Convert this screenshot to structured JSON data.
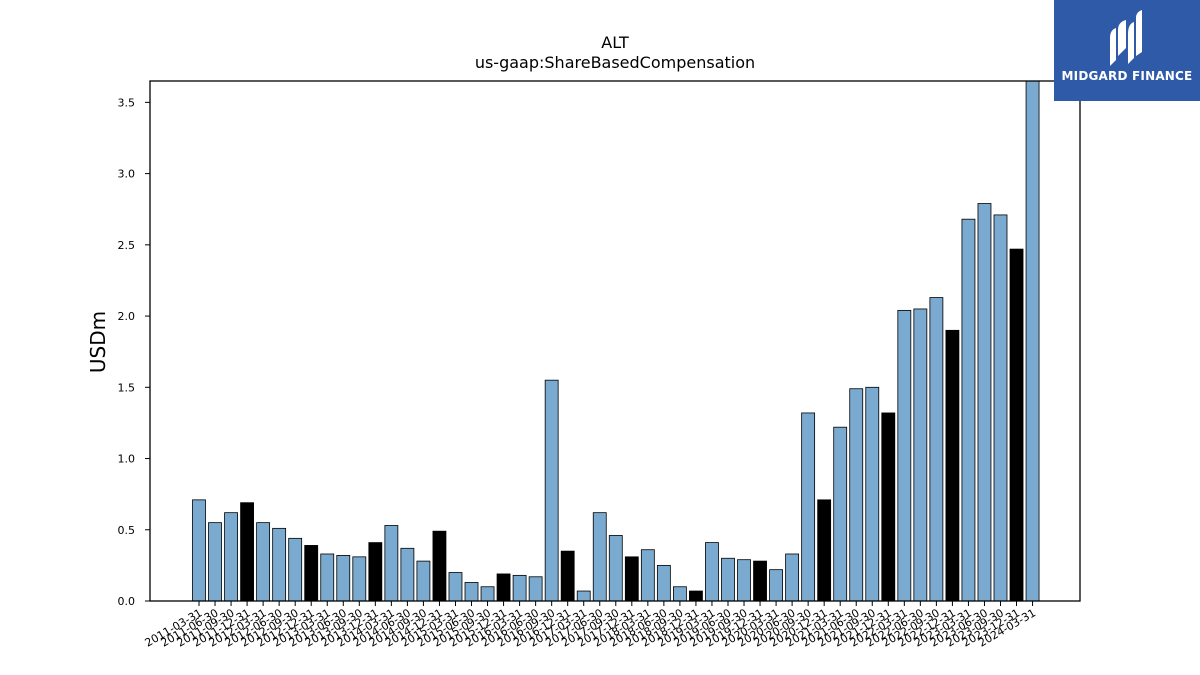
{
  "logo": {
    "text": "MIDGARD FINANCE"
  },
  "chart_data": {
    "type": "bar",
    "title": [
      "ALT",
      "us-gaap:ShareBasedCompensation"
    ],
    "xlabel": "",
    "ylabel": "USDm",
    "ylim": [
      0,
      3.65
    ],
    "yticks": [
      "0.0",
      "0.5",
      "1.0",
      "1.5",
      "2.0",
      "2.5",
      "3.0",
      "3.5"
    ],
    "colors": {
      "quarter": "#7aaad0",
      "fiscal_year_end": "#000000",
      "edge": "#000000"
    },
    "categories": [
      "2011-03-31",
      "2011-06-30",
      "2011-09-30",
      "2011-12-31",
      "2012-03-31",
      "2012-06-30",
      "2012-09-30",
      "2012-12-31",
      "2013-03-31",
      "2013-06-30",
      "2013-09-30",
      "2013-12-31",
      "2014-03-31",
      "2014-06-30",
      "2014-09-30",
      "2014-12-31",
      "2015-03-31",
      "2015-06-30",
      "2015-09-30",
      "2015-12-31",
      "2016-03-31",
      "2016-06-30",
      "2016-09-30",
      "2016-12-31",
      "2017-03-31",
      "2017-06-30",
      "2017-09-30",
      "2017-12-31",
      "2018-03-31",
      "2018-06-30",
      "2018-09-30",
      "2018-12-31",
      "2019-03-31",
      "2019-06-30",
      "2019-09-30",
      "2019-12-31",
      "2020-03-31",
      "2020-06-30",
      "2020-09-30",
      "2020-12-31",
      "2021-03-31",
      "2021-06-30",
      "2021-09-30",
      "2021-12-31",
      "2022-03-31",
      "2022-06-30",
      "2022-09-30",
      "2022-12-31",
      "2023-03-31",
      "2023-06-30",
      "2023-09-30",
      "2023-12-31",
      "2024-03-31"
    ],
    "values": [
      0.71,
      0.55,
      0.62,
      0.69,
      0.55,
      0.51,
      0.44,
      0.39,
      0.33,
      0.32,
      0.31,
      0.41,
      0.53,
      0.37,
      0.28,
      0.49,
      0.2,
      0.13,
      0.1,
      0.19,
      0.18,
      0.17,
      1.55,
      0.35,
      0.07,
      0.62,
      0.46,
      0.31,
      0.36,
      0.25,
      0.1,
      0.07,
      0.41,
      0.3,
      0.29,
      0.28,
      0.22,
      0.33,
      1.32,
      0.71,
      1.22,
      1.49,
      1.5,
      1.32,
      2.04,
      2.05,
      2.13,
      1.9,
      2.68,
      2.79,
      2.71,
      2.47,
      3.65
    ],
    "highlight": [
      false,
      false,
      false,
      true,
      false,
      false,
      false,
      true,
      false,
      false,
      false,
      true,
      false,
      false,
      false,
      true,
      false,
      false,
      false,
      true,
      false,
      false,
      false,
      true,
      false,
      false,
      false,
      true,
      false,
      false,
      false,
      true,
      false,
      false,
      false,
      true,
      false,
      false,
      false,
      true,
      false,
      false,
      false,
      true,
      false,
      false,
      false,
      true,
      false,
      false,
      false,
      true,
      false
    ]
  }
}
